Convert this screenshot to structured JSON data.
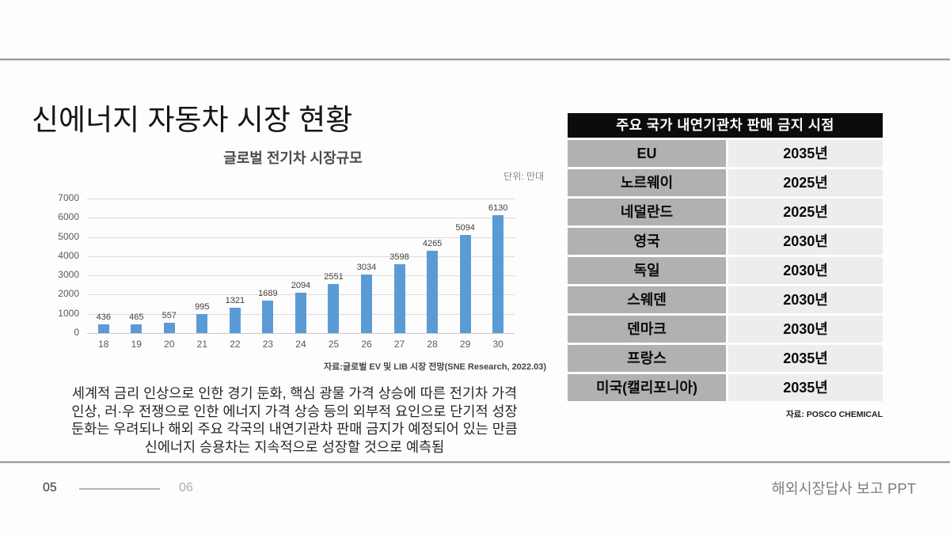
{
  "slide": {
    "title": "신에너지 자동차 시장 현황",
    "footer": {
      "page_current": "05",
      "page_next": "06",
      "deck_title": "해외시장답사 보고 PPT"
    }
  },
  "chart": {
    "title": "글로벌 전기차 시장규모",
    "unit_note": "단위: 만대",
    "source": "자료:글로벌 EV 및 LIB 시장 전망(SNE Research, 2022.03)"
  },
  "chart_data": {
    "type": "bar",
    "title": "글로벌 전기차 시장규모",
    "categories": [
      "18",
      "19",
      "20",
      "21",
      "22",
      "23",
      "24",
      "25",
      "26",
      "27",
      "28",
      "29",
      "30"
    ],
    "values": [
      436,
      465,
      557,
      995,
      1321,
      1689,
      2094,
      2551,
      3034,
      3598,
      4265,
      5094,
      6130
    ],
    "xlabel": "",
    "ylabel": "",
    "unit": "만대",
    "ylim": [
      0,
      7000
    ],
    "ytick_step": 1000,
    "grid": true,
    "legend": false,
    "bar_color": "#5b9bd5"
  },
  "paragraph": {
    "lines": [
      "세계적 금리 인상으로 인한 경기 둔화, 핵심 광물 가격 상승에 따른 전기차 가격",
      "인상, 러·우 전쟁으로 인한 에너지 가격 상승 등의 외부적 요인으로 단기적 성장",
      "둔화는 우려되나 해외 주요 각국의 내연기관차 판매 금지가 예정되어 있는 만큼",
      "신에너지 승용차는 지속적으로 성장할 것으로 예측됨"
    ]
  },
  "table": {
    "header": "주요 국가 내연기관차 판매 금지 시점",
    "rows": [
      {
        "country": "EU",
        "year": "2035년"
      },
      {
        "country": "노르웨이",
        "year": "2025년"
      },
      {
        "country": "네덜란드",
        "year": "2025년"
      },
      {
        "country": "영국",
        "year": "2030년"
      },
      {
        "country": "독일",
        "year": "2030년"
      },
      {
        "country": "스웨덴",
        "year": "2030년"
      },
      {
        "country": "덴마크",
        "year": "2030년"
      },
      {
        "country": "프랑스",
        "year": "2035년"
      },
      {
        "country": "미국(캘리포니아)",
        "year": "2035년"
      }
    ],
    "source": "자료: POSCO CHEMICAL"
  },
  "colors": {
    "bar": "#5b9bd5",
    "gridline": "#dcdcdc",
    "table_header_bg": "#0c0c0c",
    "table_country_bg": "#b1b1b1",
    "table_year_bg": "#ededed",
    "rule": "#9a9a9a"
  }
}
